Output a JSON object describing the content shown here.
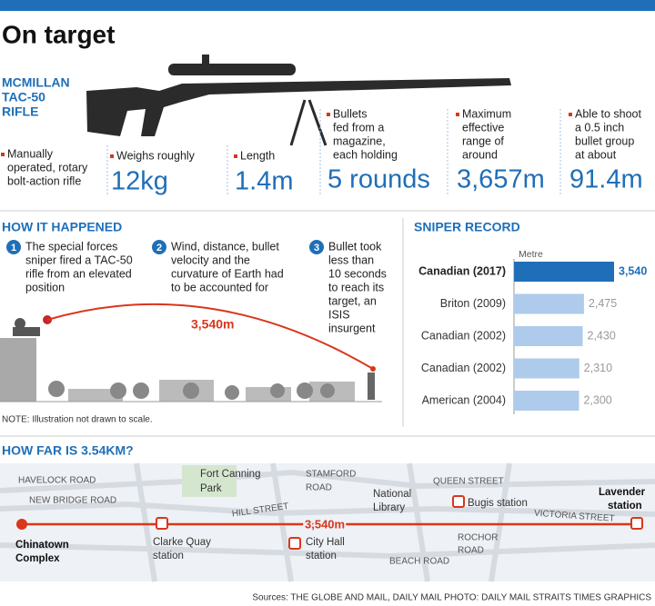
{
  "header": {
    "title": "On target"
  },
  "rifle": {
    "name_lines": [
      "MCMILLAN",
      "TAC-50",
      "RIFLE"
    ]
  },
  "specs": [
    {
      "lines": [
        "Manually",
        "operated, rotary",
        "bolt-action rifle"
      ]
    },
    {
      "lines": [
        "Weighs roughly"
      ],
      "figure": "12kg"
    },
    {
      "lines": [
        "Length"
      ],
      "figure": "1.4m"
    },
    {
      "lines": [
        "Bullets",
        "fed from a",
        "magazine,",
        "each holding"
      ],
      "figure": "5 rounds"
    },
    {
      "lines": [
        "Maximum",
        "effective",
        "range of",
        "around"
      ],
      "figure": "3,657m"
    },
    {
      "lines": [
        "Able to shoot",
        "a 0.5 inch",
        "bullet group",
        "at about"
      ],
      "figure": "91.4m"
    }
  ],
  "how": {
    "title": "HOW IT HAPPENED",
    "steps": [
      {
        "number": "1",
        "lines": [
          "The special forces",
          "sniper fired a TAC-50",
          "rifle from an elevated",
          "position"
        ]
      },
      {
        "number": "2",
        "lines": [
          "Wind, distance, bullet",
          "velocity and the",
          "curvature of Earth had",
          "to be accounted for"
        ]
      },
      {
        "number": "3",
        "lines": [
          "Bullet took",
          "less than",
          "10 seconds",
          "to reach its",
          "target, an",
          "ISIS",
          "insurgent"
        ]
      }
    ],
    "distance": "3,540m",
    "note": "NOTE: Illustration not drawn to scale."
  },
  "sniper_record": {
    "type": "bar",
    "title": "SNIPER RECORD",
    "axis_label": "Metre",
    "categories": [
      "Canadian (2017)",
      "Briton (2009)",
      "Canadian (2002)",
      "Canadian (2002)",
      "American (2004)"
    ],
    "values": [
      3540,
      2475,
      2430,
      2310,
      2300
    ],
    "value_labels": [
      "3,540",
      "2,475",
      "2,430",
      "2,310",
      "2,300"
    ],
    "highlight_color": "#1f6fb8",
    "color": "#aecbeb"
  },
  "map": {
    "title": "HOW FAR IS 3.54KM?",
    "distance": "3,540m",
    "labels": [
      "HAVELOCK ROAD",
      "NEW BRIDGE ROAD",
      "Fort Canning",
      "Park",
      "STAMFORD",
      "ROAD",
      "HILL STREET",
      "National",
      "Library",
      "QUEEN STREET",
      "Bugis station",
      "VICTORIA STREET",
      "Lavender",
      "station",
      "Chinatown",
      "Complex",
      "Clarke Quay",
      "station",
      "City Hall",
      "station",
      "ROCHOR",
      "ROAD",
      "BEACH ROAD"
    ]
  },
  "footer": {
    "sources": "Sources: THE GLOBE AND MAIL, DAILY MAIL   PHOTO: DAILY MAIL   STRAITS TIMES GRAPHICS"
  }
}
